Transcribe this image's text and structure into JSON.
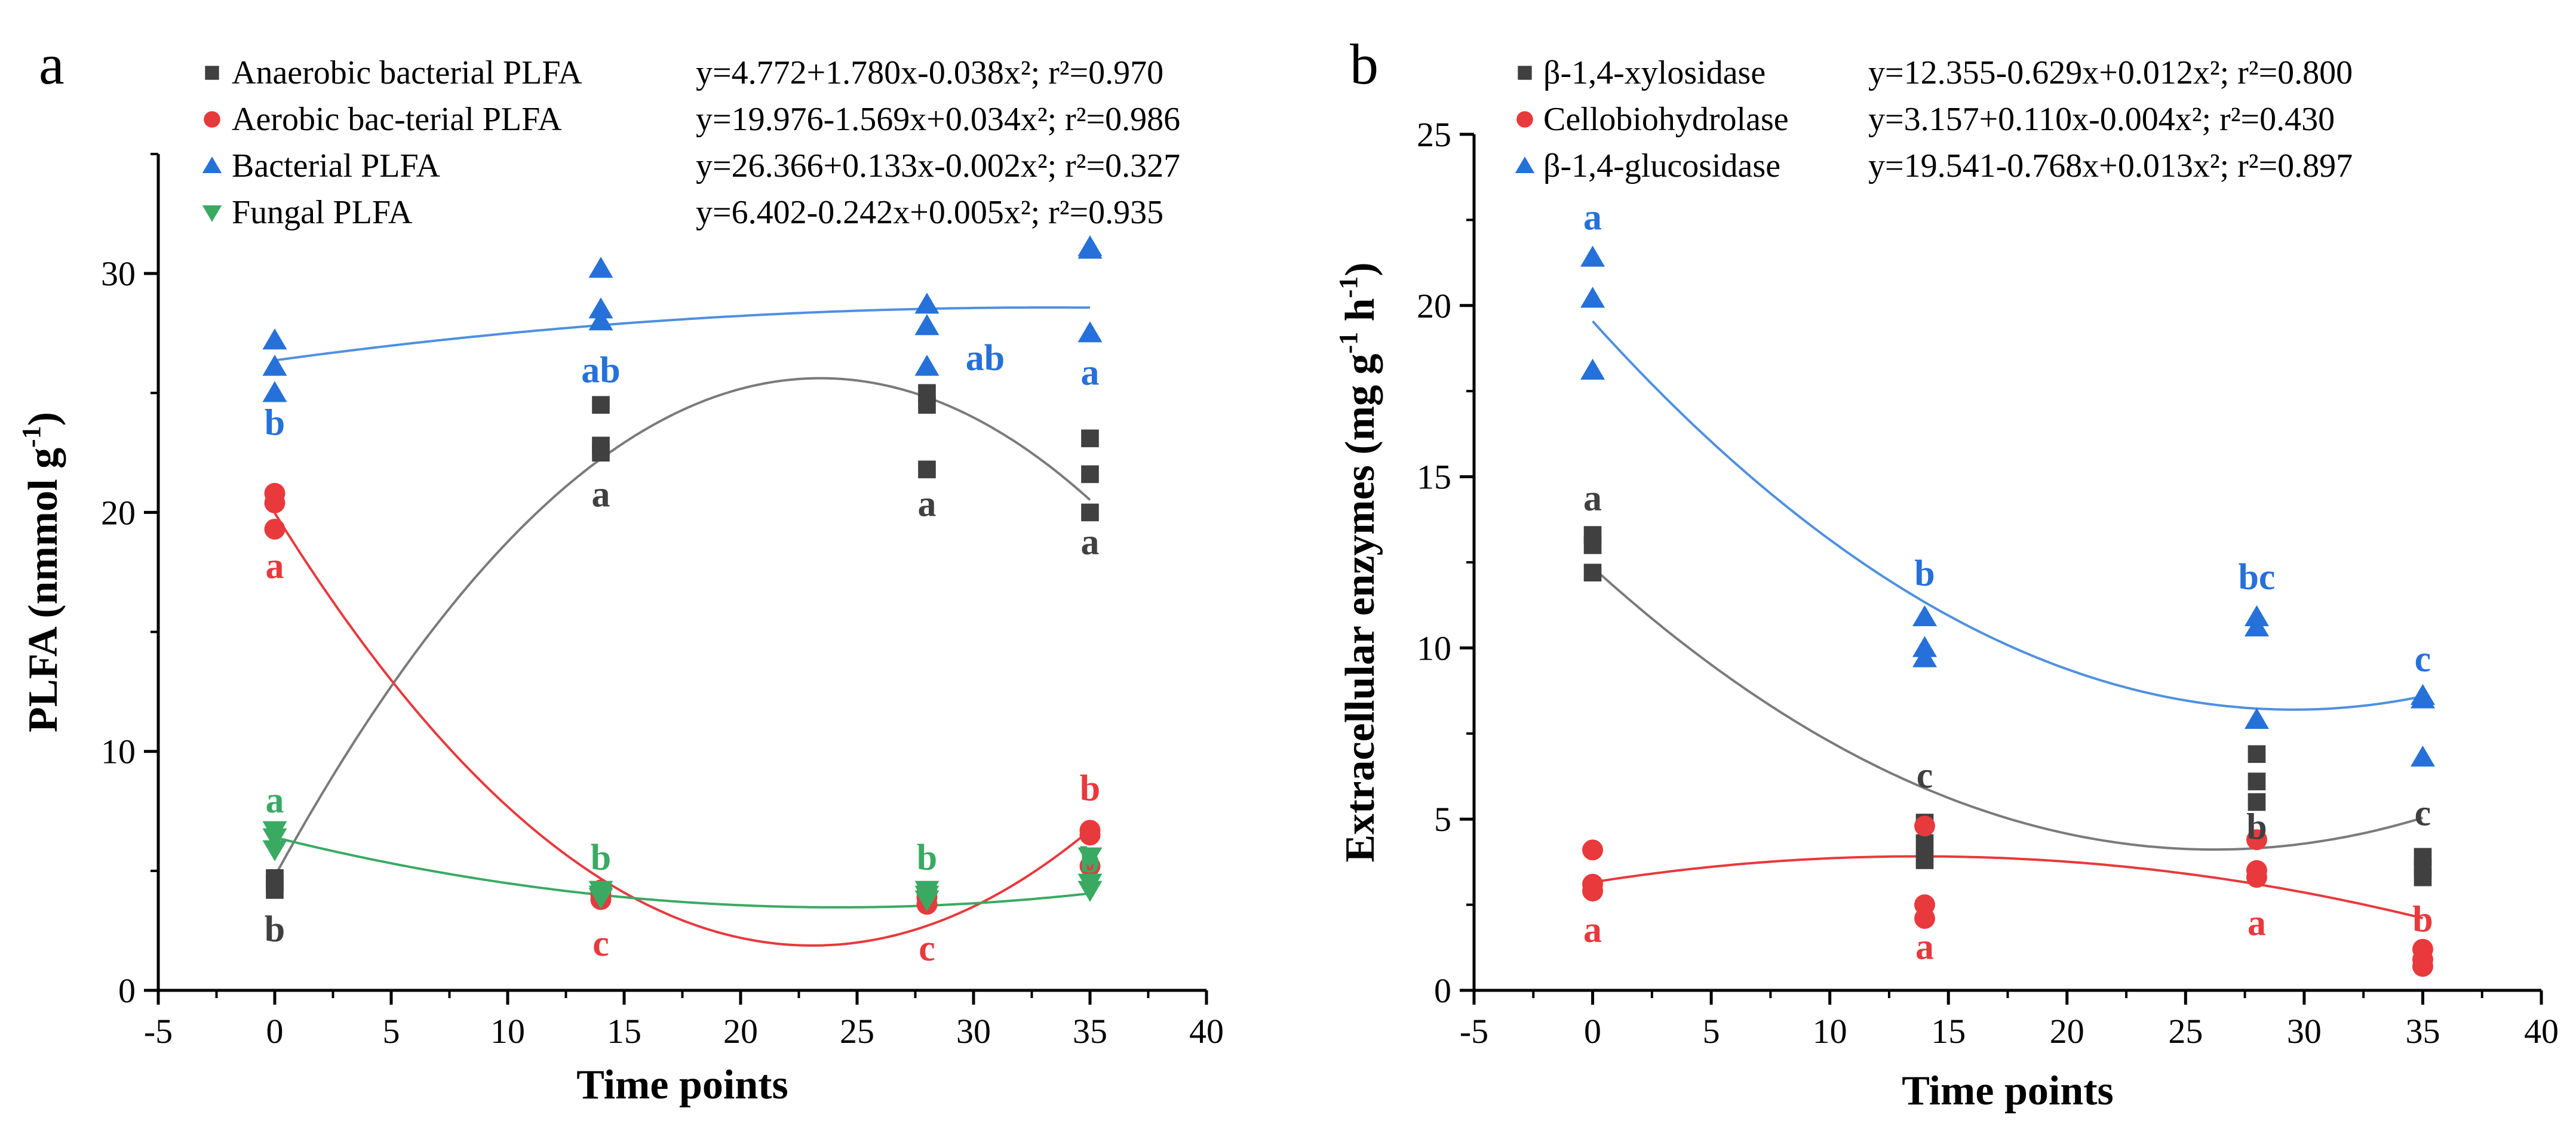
{
  "chart_data": [
    {
      "panel_label": "a",
      "type": "scatter",
      "title": "",
      "xlabel": "Time points",
      "ylabel_main": "PLFA (nmmol g",
      "ylabel_sup": "-1",
      "ylabel_close": ")",
      "xlim": [
        -5,
        40
      ],
      "ylim": [
        0,
        35
      ],
      "xticks": [
        -5,
        0,
        5,
        10,
        15,
        20,
        25,
        30,
        35,
        40
      ],
      "xtick_labels": [
        "-5",
        "0",
        "5",
        "10",
        "15",
        "20",
        "25",
        "30",
        "35",
        "40"
      ],
      "yticks": [
        0,
        10,
        20,
        30
      ],
      "ytick_labels": [
        "0",
        "10",
        "20",
        "30"
      ],
      "series": [
        {
          "name": "Anaerobic bacterial PLFA",
          "equation": "y=4.772+1.780x-0.038x²; r²=0.970",
          "marker": "square",
          "color": "#404040",
          "line_color": "#7a7a7a",
          "fit": [
            4.772,
            1.78,
            -0.038
          ],
          "points": [
            [
              0,
              4.2
            ],
            [
              0,
              4.5
            ],
            [
              0,
              4.7
            ],
            [
              14,
              22.5
            ],
            [
              14,
              22.8
            ],
            [
              14,
              24.5
            ],
            [
              28,
              21.8
            ],
            [
              28,
              24.5
            ],
            [
              28,
              25.0
            ],
            [
              35,
              20.0
            ],
            [
              35,
              21.6
            ],
            [
              35,
              23.1
            ]
          ],
          "letters": [
            {
              "x": 0,
              "y": 2.6,
              "text": "b"
            },
            {
              "x": 14,
              "y": 20.8,
              "text": "a"
            },
            {
              "x": 28,
              "y": 20.4,
              "text": "a"
            },
            {
              "x": 35,
              "y": 18.8,
              "text": "a"
            }
          ]
        },
        {
          "name": "Aerobic bac-terial PLFA",
          "equation": "y=19.976-1.569x+0.034x²; r²=0.986",
          "marker": "circle",
          "color": "#e8393d",
          "line_color": "#e8393d",
          "fit": [
            19.976,
            -1.569,
            0.034
          ],
          "points": [
            [
              0,
              19.3
            ],
            [
              0,
              20.4
            ],
            [
              0,
              20.8
            ],
            [
              14,
              3.8
            ],
            [
              14,
              4.0
            ],
            [
              14,
              4.2
            ],
            [
              28,
              3.6
            ],
            [
              28,
              3.9
            ],
            [
              28,
              4.1
            ],
            [
              35,
              6.5
            ],
            [
              35,
              6.7
            ],
            [
              35,
              5.2
            ]
          ],
          "letters": [
            {
              "x": 0,
              "y": 17.8,
              "text": "a"
            },
            {
              "x": 14,
              "y": 2.0,
              "text": "c"
            },
            {
              "x": 28,
              "y": 1.8,
              "text": "c"
            },
            {
              "x": 35,
              "y": 8.5,
              "text": "b"
            }
          ]
        },
        {
          "name": "Bacterial PLFA",
          "equation": "y=26.366+0.133x-0.002x²; r²=0.327",
          "marker": "triangle-up",
          "color": "#2671d9",
          "line_color": "#4f90e0",
          "fit": [
            26.366,
            0.133,
            -0.002
          ],
          "points": [
            [
              0,
              25.0
            ],
            [
              0,
              26.1
            ],
            [
              0,
              27.2
            ],
            [
              14,
              28.0
            ],
            [
              14,
              28.5
            ],
            [
              14,
              30.2
            ],
            [
              28,
              26.1
            ],
            [
              28,
              27.8
            ],
            [
              28,
              28.7
            ],
            [
              35,
              27.5
            ],
            [
              35,
              31.0
            ],
            [
              35,
              31.1
            ]
          ],
          "letters": [
            {
              "x": 0,
              "y": 23.8,
              "text": "b"
            },
            {
              "x": 14,
              "y": 26.0,
              "text": "ab"
            },
            {
              "x": 30.5,
              "y": 26.5,
              "text": "ab"
            },
            {
              "x": 35,
              "y": 25.9,
              "text": "a"
            }
          ]
        },
        {
          "name": "Fungal PLFA",
          "equation": "y=6.402-0.242x+0.005x²; r²=0.935",
          "marker": "triangle-down",
          "color": "#3aaa63",
          "line_color": "#3aaa63",
          "fit": [
            6.402,
            -0.242,
            0.005
          ],
          "points": [
            [
              0,
              5.9
            ],
            [
              0,
              6.4
            ],
            [
              0,
              6.7
            ],
            [
              14,
              3.9
            ],
            [
              14,
              4.0
            ],
            [
              14,
              4.2
            ],
            [
              28,
              3.8
            ],
            [
              28,
              4.0
            ],
            [
              28,
              4.2
            ],
            [
              35,
              4.2
            ],
            [
              35,
              4.5
            ],
            [
              35,
              5.6
            ]
          ],
          "letters": [
            {
              "x": 0,
              "y": 8.0,
              "text": "a"
            },
            {
              "x": 14,
              "y": 5.6,
              "text": "b"
            },
            {
              "x": 28,
              "y": 5.6,
              "text": "b"
            },
            {
              "x": 35,
              "y": 5.5,
              "text": "b"
            }
          ]
        }
      ]
    },
    {
      "panel_label": "b",
      "type": "scatter",
      "title": "",
      "xlabel": "Time points",
      "ylabel_main": "Extracellular enzymes (mg g",
      "ylabel_sup": "-1",
      "ylabel_mid": " h",
      "ylabel_sup2": "-1",
      "ylabel_close": ")",
      "xlim": [
        -5,
        40
      ],
      "ylim": [
        0,
        25
      ],
      "xticks": [
        -5,
        0,
        5,
        10,
        15,
        20,
        25,
        30,
        35,
        40
      ],
      "xtick_labels": [
        "-5",
        "0",
        "5",
        "10",
        "15",
        "20",
        "25",
        "30",
        "35",
        "40"
      ],
      "yticks": [
        0,
        5,
        10,
        15,
        20,
        25
      ],
      "ytick_labels": [
        "0",
        "5",
        "10",
        "15",
        "20",
        "25"
      ],
      "series": [
        {
          "name": "β-1,4-xylosidase",
          "equation": "y=12.355-0.629x+0.012x²; r²=0.800",
          "marker": "square",
          "color": "#404040",
          "line_color": "#7a7a7a",
          "fit": [
            12.355,
            -0.629,
            0.012
          ],
          "points": [
            [
              0,
              12.2
            ],
            [
              0,
              13.0
            ],
            [
              0,
              13.3
            ],
            [
              14,
              3.8
            ],
            [
              14,
              4.3
            ],
            [
              14,
              4.9
            ],
            [
              28,
              5.5
            ],
            [
              28,
              6.1
            ],
            [
              28,
              6.9
            ],
            [
              35,
              3.3
            ],
            [
              35,
              3.6
            ],
            [
              35,
              3.9
            ]
          ],
          "letters": [
            {
              "x": 0,
              "y": 14.4,
              "text": "a"
            },
            {
              "x": 14,
              "y": 6.3,
              "text": "c"
            },
            {
              "x": 28,
              "y": 4.8,
              "text": "b"
            },
            {
              "x": 35,
              "y": 5.2,
              "text": "c"
            }
          ]
        },
        {
          "name": "Cellobiohydrolase",
          "equation": "y=3.157+0.110x-0.004x²; r²=0.430",
          "marker": "circle",
          "color": "#e8393d",
          "line_color": "#e8393d",
          "fit": [
            3.157,
            0.11,
            -0.004
          ],
          "points": [
            [
              0,
              2.9
            ],
            [
              0,
              3.1
            ],
            [
              0,
              4.1
            ],
            [
              14,
              2.1
            ],
            [
              14,
              2.5
            ],
            [
              14,
              4.8
            ],
            [
              28,
              3.3
            ],
            [
              28,
              3.5
            ],
            [
              28,
              4.4
            ],
            [
              35,
              0.7
            ],
            [
              35,
              0.9
            ],
            [
              35,
              1.2
            ]
          ],
          "letters": [
            {
              "x": 0,
              "y": 1.8,
              "text": "a"
            },
            {
              "x": 14,
              "y": 1.3,
              "text": "a"
            },
            {
              "x": 28,
              "y": 2.0,
              "text": "a"
            },
            {
              "x": 35,
              "y": 2.1,
              "text": "b"
            }
          ]
        },
        {
          "name": "β-1,4-glucosidase",
          "equation": "y=19.541-0.768x+0.013x²; r²=0.897",
          "marker": "triangle-up",
          "color": "#2671d9",
          "line_color": "#4f90e0",
          "fit": [
            19.541,
            -0.768,
            0.013
          ],
          "points": [
            [
              0,
              18.1
            ],
            [
              0,
              20.2
            ],
            [
              0,
              21.4
            ],
            [
              14,
              9.7
            ],
            [
              14,
              10.0
            ],
            [
              14,
              10.9
            ],
            [
              28,
              7.9
            ],
            [
              28,
              10.6
            ],
            [
              28,
              10.9
            ],
            [
              35,
              6.8
            ],
            [
              35,
              8.5
            ],
            [
              35,
              8.6
            ]
          ],
          "letters": [
            {
              "x": 0,
              "y": 22.6,
              "text": "a"
            },
            {
              "x": 14,
              "y": 12.2,
              "text": "b"
            },
            {
              "x": 28,
              "y": 12.1,
              "text": "bc"
            },
            {
              "x": 35,
              "y": 9.7,
              "text": "c"
            }
          ]
        }
      ]
    }
  ]
}
